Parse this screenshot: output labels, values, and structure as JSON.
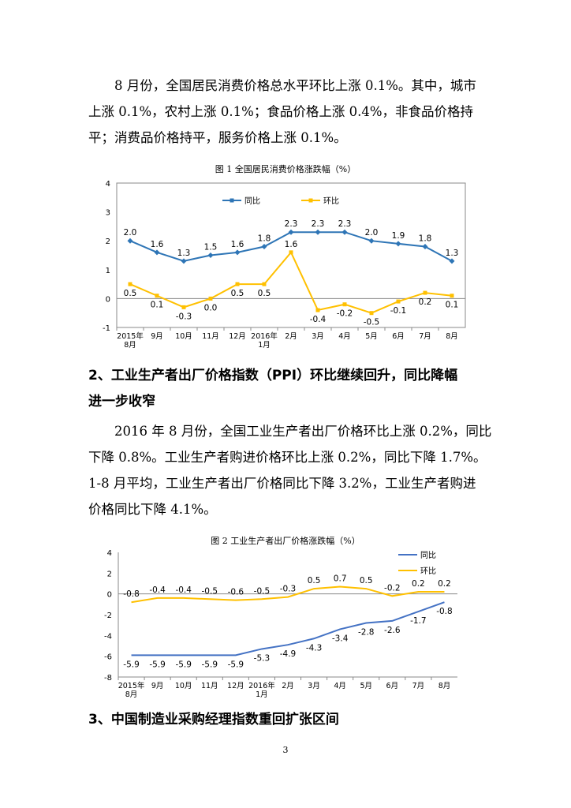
{
  "para1": {
    "lines": [
      "8 月份，全国居民消费价格总水平环比上涨 0.1%。其中，城市",
      "上涨 0.1%，农村上涨 0.1%；食品价格上涨 0.4%，非食品价格持",
      "平；消费品价格持平，服务价格上涨 0.1%。"
    ]
  },
  "fig1": {
    "caption": "图 1  全国居民消费价格涨跌幅（%）"
  },
  "heading2": {
    "lines": [
      "2、工业生产者出厂价格指数（PPI）环比继续回升，同比降幅",
      "进一步收窄"
    ]
  },
  "para2": {
    "lines": [
      "2016 年 8 月份，全国工业生产者出厂价格环比上涨 0.2%，同比",
      "下降 0.8%。工业生产者购进价格环比上涨 0.2%，同比下降 1.7%。",
      "1-8 月平均，工业生产者出厂价格同比下降 3.2%，工业生产者购进",
      "价格同比下降 4.1%。"
    ]
  },
  "fig2": {
    "caption": "图 2  工业生产者出厂价格涨跌幅（%）"
  },
  "heading3": {
    "text": "3、中国制造业采购经理指数重回扩张区间"
  },
  "page_number": "3",
  "chart_data": [
    {
      "type": "line",
      "title": "图 1  全国居民消费价格涨跌幅（%）",
      "categories": [
        "2015年\n8月",
        "9月",
        "10月",
        "11月",
        "12月",
        "2016年\n1月",
        "2月",
        "3月",
        "4月",
        "5月",
        "6月",
        "7月",
        "8月"
      ],
      "ylim": [
        -1,
        4
      ],
      "yticks": [
        -1,
        0,
        1,
        2,
        3,
        4
      ],
      "legend_position": "top-left",
      "series": [
        {
          "name": "同比",
          "color": "#2E75B6",
          "values": [
            2.0,
            1.6,
            1.3,
            1.5,
            1.6,
            1.8,
            2.3,
            2.3,
            2.3,
            2.0,
            1.9,
            1.8,
            1.3
          ],
          "labels": [
            "2.0",
            "1.6",
            "1.3",
            "1.5",
            "1.6",
            "1.8",
            "2.3",
            "2.3",
            "2.3",
            "2.0",
            "1.9",
            "1.8",
            "1.3"
          ]
        },
        {
          "name": "环比",
          "color": "#FFC000",
          "values": [
            0.5,
            0.1,
            -0.3,
            0.0,
            0.5,
            0.5,
            1.6,
            -0.4,
            -0.2,
            -0.5,
            -0.1,
            0.2,
            0.1
          ],
          "labels": [
            "0.5",
            "0.1",
            "-0.3",
            "0.0",
            "0.5",
            "0.5",
            "1.6",
            "-0.4",
            "-0.2",
            "-0.5",
            "-0.1",
            "0.2",
            "0.1"
          ]
        }
      ]
    },
    {
      "type": "line",
      "title": "图 2  工业生产者出厂价格涨跌幅（%）",
      "categories": [
        "2015年\n8月",
        "9月",
        "10月",
        "11月",
        "12月",
        "2016年\n1月",
        "2月",
        "3月",
        "4月",
        "5月",
        "6月",
        "7月",
        "8月"
      ],
      "ylim": [
        -8,
        4
      ],
      "yticks": [
        -8,
        -6,
        -4,
        -2,
        0,
        2,
        4
      ],
      "legend_position": "top-right",
      "series": [
        {
          "name": "同比",
          "color": "#4472C4",
          "values": [
            -5.9,
            -5.9,
            -5.9,
            -5.9,
            -5.9,
            -5.3,
            -4.9,
            -4.3,
            -3.4,
            -2.8,
            -2.6,
            -1.7,
            -0.8
          ],
          "labels": [
            "-5.9",
            "-5.9",
            "-5.9",
            "-5.9",
            "-5.9",
            "-5.3",
            "-4.9",
            "-4.3",
            "-3.4",
            "-2.8",
            "-2.6",
            "-1.7",
            "-0.8"
          ]
        },
        {
          "name": "环比",
          "color": "#FFC000",
          "values": [
            -0.8,
            -0.4,
            -0.4,
            -0.5,
            -0.6,
            -0.5,
            -0.3,
            0.5,
            0.7,
            0.5,
            -0.2,
            0.2,
            0.2
          ],
          "labels": [
            "-0.8",
            "-0.4",
            "-0.4",
            "-0.5",
            "-0.6",
            "-0.5",
            "-0.3",
            "0.5",
            "0.7",
            "0.5",
            "-0.2",
            "0.2",
            "0.2"
          ]
        }
      ]
    }
  ]
}
